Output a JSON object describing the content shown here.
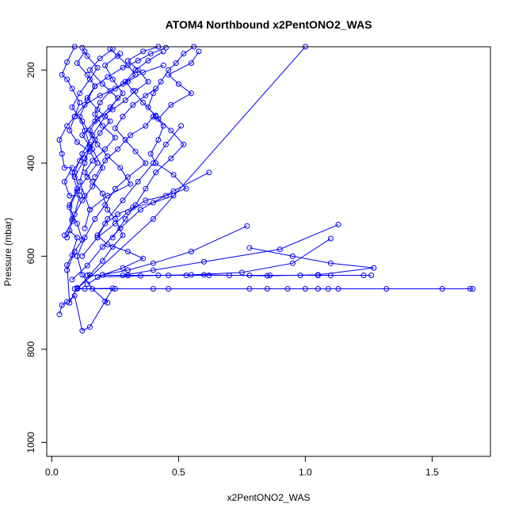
{
  "chart_data": {
    "type": "line",
    "title": "ATOM4 Northbound x2PentONO2_WAS",
    "xlabel": "x2PentONO2_WAS",
    "ylabel": "Pressure (mbar)",
    "xlim": [
      -0.02,
      1.73
    ],
    "ylim": [
      1030,
      150
    ],
    "y_reversed": true,
    "x_ticks": [
      0,
      0.5,
      1,
      1.5
    ],
    "x_tick_labels": [
      "0.0",
      "0.5",
      "1.0",
      "1.5"
    ],
    "y_ticks": [
      200,
      400,
      600,
      800,
      1000
    ],
    "y_tick_labels": [
      "200",
      "400",
      "600",
      "800",
      "1000"
    ],
    "grid": false,
    "marker": "open-circle",
    "color": "#0000ff",
    "series": [
      {
        "points": [
          [
            0.03,
            725
          ],
          [
            0.04,
            705
          ],
          [
            0.06,
            698
          ],
          [
            0.09,
            685
          ],
          [
            0.12,
            760
          ],
          [
            0.15,
            752
          ],
          [
            0.21,
            697
          ],
          [
            0.24,
            669
          ],
          [
            0.13,
            670
          ],
          [
            0.1,
            668
          ],
          [
            0.07,
            700
          ],
          [
            0.06,
            619
          ],
          [
            0.08,
            598
          ],
          [
            0.1,
            560
          ],
          [
            0.07,
            545
          ],
          [
            0.06,
            560
          ],
          [
            0.09,
            510
          ],
          [
            0.11,
            470
          ],
          [
            0.07,
            470
          ],
          [
            0.05,
            440
          ],
          [
            0.08,
            410
          ],
          [
            0.05,
            410
          ],
          [
            0.04,
            380
          ],
          [
            0.03,
            350
          ],
          [
            0.06,
            320
          ],
          [
            0.09,
            300
          ],
          [
            0.11,
            270
          ],
          [
            0.08,
            240
          ],
          [
            0.06,
            220
          ],
          [
            0.04,
            210
          ],
          [
            0.06,
            183
          ],
          [
            0.09,
            150
          ]
        ]
      },
      {
        "points": [
          [
            0.1,
            670
          ],
          [
            0.15,
            640
          ],
          [
            0.2,
            610
          ],
          [
            0.24,
            580
          ],
          [
            0.28,
            555
          ],
          [
            0.25,
            520
          ],
          [
            0.22,
            500
          ],
          [
            0.2,
            465
          ],
          [
            0.16,
            440
          ],
          [
            0.13,
            420
          ],
          [
            0.16,
            395
          ],
          [
            0.21,
            370
          ],
          [
            0.25,
            345
          ],
          [
            0.2,
            320
          ],
          [
            0.17,
            295
          ],
          [
            0.19,
            270
          ],
          [
            0.23,
            245
          ],
          [
            0.28,
            230
          ],
          [
            0.33,
            210
          ],
          [
            0.3,
            190
          ],
          [
            0.26,
            170
          ],
          [
            0.23,
            155
          ]
        ]
      },
      {
        "points": [
          [
            0.12,
            600
          ],
          [
            0.18,
            560
          ],
          [
            0.25,
            530
          ],
          [
            0.3,
            505
          ],
          [
            0.37,
            480
          ],
          [
            0.45,
            470
          ],
          [
            0.53,
            455
          ],
          [
            0.48,
            425
          ],
          [
            0.41,
            400
          ],
          [
            0.39,
            380
          ],
          [
            0.42,
            350
          ],
          [
            0.44,
            320
          ],
          [
            0.41,
            300
          ],
          [
            0.38,
            280
          ],
          [
            0.4,
            250
          ],
          [
            0.43,
            225
          ],
          [
            0.46,
            200
          ],
          [
            0.49,
            185
          ],
          [
            0.52,
            165
          ],
          [
            0.56,
            150
          ]
        ]
      },
      {
        "points": [
          [
            0.15,
            500
          ],
          [
            0.22,
            470
          ],
          [
            0.31,
            445
          ],
          [
            0.27,
            410
          ],
          [
            0.22,
            385
          ],
          [
            0.18,
            360
          ],
          [
            0.15,
            330
          ],
          [
            0.18,
            305
          ],
          [
            0.24,
            285
          ],
          [
            0.29,
            265
          ],
          [
            0.33,
            245
          ],
          [
            0.38,
            225
          ],
          [
            0.34,
            200
          ],
          [
            0.3,
            180
          ],
          [
            0.36,
            160
          ],
          [
            0.42,
            150
          ]
        ]
      },
      {
        "points": [
          [
            0.62,
            420
          ],
          [
            0.48,
            460
          ],
          [
            0.35,
            500
          ],
          [
            0.27,
            540
          ],
          [
            0.2,
            580
          ],
          [
            0.14,
            620
          ],
          [
            0.08,
            650
          ]
        ]
      },
      {
        "points": [
          [
            0.77,
            535
          ],
          [
            0.55,
            590
          ],
          [
            0.4,
            615
          ],
          [
            0.3,
            630
          ],
          [
            0.2,
            640
          ]
        ]
      },
      {
        "points": [
          [
            1.13,
            532
          ],
          [
            0.9,
            585
          ],
          [
            0.6,
            612
          ],
          [
            0.4,
            630
          ],
          [
            0.28,
            641
          ]
        ]
      },
      {
        "points": [
          [
            1.1,
            562
          ],
          [
            0.95,
            615
          ],
          [
            0.75,
            635
          ],
          [
            0.55,
            640
          ],
          [
            0.35,
            642
          ],
          [
            0.18,
            645
          ]
        ]
      },
      {
        "points": [
          [
            0.78,
            582
          ],
          [
            0.95,
            600
          ],
          [
            1.1,
            615
          ],
          [
            1.27,
            625
          ],
          [
            1.05,
            640
          ],
          [
            0.85,
            642
          ],
          [
            0.6,
            640
          ],
          [
            0.42,
            641
          ],
          [
            0.3,
            641
          ],
          [
            0.14,
            641
          ]
        ]
      },
      {
        "points": [
          [
            0.51,
            320
          ],
          [
            0.45,
            360
          ],
          [
            0.4,
            400
          ],
          [
            0.34,
            440
          ],
          [
            0.28,
            480
          ],
          [
            0.22,
            520
          ],
          [
            0.18,
            560
          ]
        ]
      },
      {
        "points": [
          [
            0.14,
            641
          ],
          [
            0.3,
            641
          ],
          [
            0.46,
            641
          ],
          [
            0.53,
            641
          ],
          [
            0.62,
            641
          ],
          [
            0.7,
            641
          ],
          [
            0.78,
            641
          ],
          [
            0.86,
            641
          ],
          [
            0.98,
            641
          ],
          [
            1.05,
            641
          ],
          [
            1.1,
            641
          ],
          [
            1.23,
            641
          ],
          [
            1.26,
            641
          ]
        ]
      },
      {
        "points": [
          [
            0.09,
            670
          ],
          [
            0.25,
            670
          ],
          [
            0.4,
            670
          ],
          [
            0.46,
            670
          ],
          [
            0.78,
            670
          ],
          [
            0.85,
            670
          ],
          [
            0.93,
            670
          ],
          [
            1.0,
            670
          ],
          [
            1.05,
            670
          ],
          [
            1.09,
            670
          ],
          [
            1.13,
            670
          ],
          [
            1.32,
            670
          ],
          [
            1.54,
            670
          ],
          [
            1.65,
            670
          ],
          [
            1.66,
            670
          ]
        ]
      },
      {
        "points": [
          [
            0.09,
            430
          ],
          [
            0.13,
            390
          ],
          [
            0.17,
            350
          ],
          [
            0.12,
            310
          ],
          [
            0.08,
            280
          ],
          [
            0.11,
            250
          ],
          [
            0.15,
            220
          ],
          [
            0.18,
            195
          ],
          [
            0.14,
            170
          ],
          [
            0.12,
            152
          ]
        ]
      },
      {
        "points": [
          [
            0.11,
            460
          ],
          [
            0.09,
            420
          ],
          [
            0.12,
            380
          ],
          [
            0.16,
            340
          ],
          [
            0.21,
            300
          ],
          [
            0.26,
            260
          ],
          [
            0.2,
            230
          ],
          [
            0.15,
            200
          ],
          [
            0.19,
            175
          ],
          [
            0.24,
            155
          ]
        ]
      },
      {
        "points": [
          [
            0.08,
            520
          ],
          [
            0.12,
            480
          ],
          [
            0.16,
            450
          ],
          [
            0.2,
            410
          ],
          [
            0.16,
            370
          ],
          [
            0.12,
            340
          ],
          [
            0.17,
            310
          ],
          [
            0.23,
            280
          ],
          [
            0.28,
            250
          ],
          [
            0.24,
            220
          ],
          [
            0.21,
            190
          ],
          [
            0.27,
            165
          ]
        ]
      },
      {
        "points": [
          [
            0.24,
            560
          ],
          [
            0.29,
            520
          ],
          [
            0.33,
            490
          ],
          [
            0.37,
            455
          ],
          [
            0.41,
            420
          ],
          [
            0.47,
            390
          ],
          [
            0.52,
            360
          ],
          [
            0.47,
            330
          ],
          [
            0.42,
            305
          ],
          [
            0.47,
            275
          ],
          [
            0.55,
            250
          ],
          [
            0.5,
            230
          ],
          [
            0.46,
            210
          ],
          [
            0.55,
            185
          ],
          [
            0.58,
            160
          ]
        ]
      },
      {
        "points": [
          [
            0.13,
            540
          ],
          [
            0.15,
            500
          ],
          [
            0.13,
            470
          ],
          [
            0.11,
            440
          ],
          [
            0.13,
            400
          ],
          [
            0.15,
            360
          ],
          [
            0.13,
            330
          ],
          [
            0.11,
            300
          ],
          [
            0.14,
            265
          ],
          [
            0.17,
            235
          ],
          [
            0.14,
            210
          ],
          [
            0.1,
            185
          ],
          [
            0.13,
            160
          ]
        ]
      },
      {
        "points": [
          [
            0.22,
            700
          ],
          [
            0.16,
            670
          ],
          [
            0.12,
            640
          ],
          [
            0.1,
            600
          ],
          [
            0.13,
            560
          ],
          [
            0.17,
            520
          ],
          [
            0.21,
            490
          ],
          [
            0.25,
            455
          ],
          [
            0.3,
            430
          ],
          [
            0.37,
            400
          ],
          [
            0.33,
            375
          ],
          [
            0.29,
            350
          ],
          [
            0.25,
            325
          ],
          [
            0.28,
            300
          ],
          [
            0.32,
            275
          ],
          [
            0.37,
            255
          ],
          [
            0.41,
            240
          ]
        ]
      },
      {
        "points": [
          [
            0.06,
            630
          ],
          [
            0.09,
            590
          ],
          [
            0.12,
            565
          ],
          [
            0.1,
            530
          ],
          [
            0.07,
            495
          ],
          [
            0.1,
            460
          ],
          [
            0.14,
            430
          ],
          [
            0.18,
            400
          ],
          [
            0.15,
            375
          ],
          [
            0.1,
            355
          ],
          [
            0.07,
            330
          ],
          [
            0.09,
            300
          ],
          [
            0.13,
            275
          ],
          [
            0.19,
            255
          ],
          [
            0.25,
            240
          ],
          [
            0.3,
            225
          ],
          [
            0.36,
            205
          ],
          [
            0.44,
            190
          ]
        ]
      },
      {
        "points": [
          [
            0.14,
            660
          ],
          [
            0.2,
            640
          ],
          [
            0.28,
            625
          ],
          [
            0.36,
            605
          ],
          [
            0.3,
            590
          ],
          [
            0.22,
            575
          ],
          [
            0.18,
            555
          ],
          [
            0.21,
            530
          ],
          [
            0.26,
            510
          ],
          [
            0.32,
            495
          ],
          [
            0.4,
            485
          ],
          [
            0.48,
            470
          ]
        ]
      },
      {
        "points": [
          [
            0.05,
            555
          ],
          [
            0.08,
            525
          ],
          [
            0.07,
            490
          ],
          [
            0.1,
            455
          ],
          [
            0.08,
            420
          ],
          [
            0.11,
            395
          ],
          [
            0.15,
            365
          ],
          [
            0.19,
            335
          ],
          [
            0.23,
            310
          ],
          [
            0.18,
            285
          ],
          [
            0.14,
            260
          ],
          [
            0.17,
            235
          ],
          [
            0.22,
            215
          ],
          [
            0.28,
            195
          ],
          [
            0.34,
            180
          ],
          [
            0.39,
            165
          ],
          [
            0.45,
            152
          ]
        ]
      },
      {
        "points": [
          [
            0.1,
            670
          ],
          [
            0.4,
            520
          ],
          [
            1.0,
            150
          ]
        ]
      },
      {
        "points": [
          [
            0.17,
            430
          ],
          [
            0.21,
            395
          ],
          [
            0.26,
            370
          ],
          [
            0.31,
            340
          ],
          [
            0.37,
            320
          ],
          [
            0.4,
            300
          ],
          [
            0.41,
            298
          ],
          [
            0.36,
            270
          ],
          [
            0.32,
            245
          ],
          [
            0.29,
            225
          ],
          [
            0.33,
            200
          ],
          [
            0.38,
            180
          ],
          [
            0.44,
            160
          ]
        ]
      }
    ]
  }
}
